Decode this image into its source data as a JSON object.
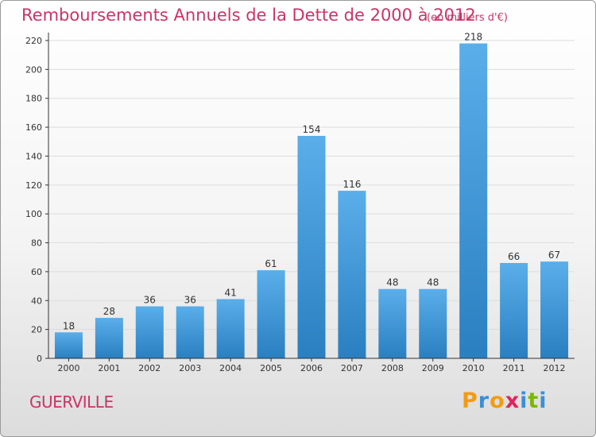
{
  "title": "Remboursements Annuels de la Dette de 2000 à 2012",
  "unit": "(en milliers d'€)",
  "commune": "GUERVILLE",
  "logo": {
    "text": "Proxiti",
    "letters": [
      "P",
      "r",
      "o",
      "x",
      "i",
      "t",
      "i"
    ],
    "colors": [
      "#f39c12",
      "#3a8fd8",
      "#f39c12",
      "#e0245e",
      "#3a8fd8",
      "#7ab800",
      "#3a8fd8"
    ]
  },
  "colors": {
    "title": "#cc3366",
    "bar_top": "#5aaeea",
    "bar_bottom": "#2a7fc0",
    "grid": "#dddddd"
  },
  "chart_data": {
    "type": "bar",
    "categories": [
      "2000",
      "2001",
      "2002",
      "2003",
      "2004",
      "2005",
      "2006",
      "2007",
      "2008",
      "2009",
      "2010",
      "2011",
      "2012"
    ],
    "values": [
      18,
      28,
      36,
      36,
      41,
      61,
      154,
      116,
      48,
      48,
      218,
      66,
      67
    ],
    "title": "Remboursements Annuels de la Dette de 2000 à 2012",
    "xlabel": "",
    "ylabel": "",
    "ylim": [
      0,
      220
    ],
    "yticks": [
      0,
      20,
      40,
      60,
      80,
      100,
      120,
      140,
      160,
      180,
      200,
      220
    ],
    "grid": true,
    "data_labels": true
  }
}
